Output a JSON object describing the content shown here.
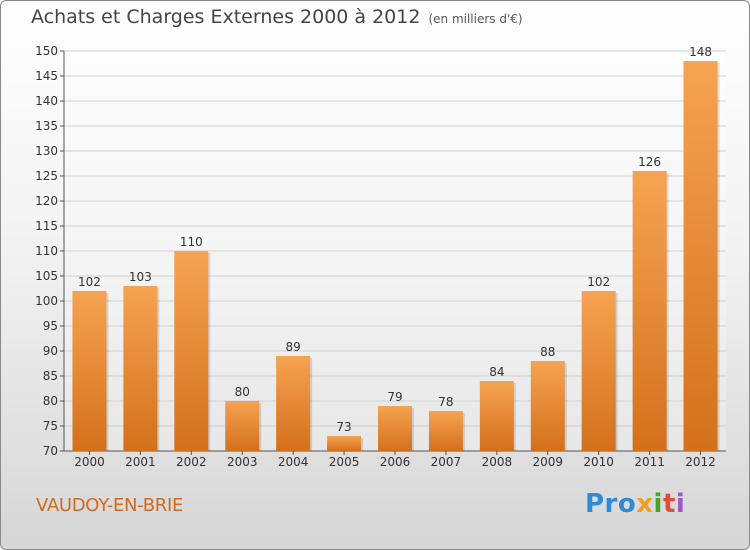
{
  "header": {
    "title": "Achats et Charges Externes 2000 à 2012",
    "unit": "(en milliers d'€)"
  },
  "footer": {
    "town": "VAUDOY-EN-BRIE",
    "logo_parts": [
      "Pro",
      "x",
      "i",
      "t",
      "i"
    ]
  },
  "colors": {
    "bar_light": "#f5a352",
    "bar_dark": "#d4701c",
    "town": "#d2691e",
    "grid": "#d0d0d0"
  },
  "chart_data": {
    "type": "bar",
    "title": "Achats et Charges Externes 2000 à 2012",
    "subtitle": "(en milliers d'€)",
    "categories": [
      "2000",
      "2001",
      "2002",
      "2003",
      "2004",
      "2005",
      "2006",
      "2007",
      "2008",
      "2009",
      "2010",
      "2011",
      "2012"
    ],
    "values": [
      102,
      103,
      110,
      80,
      89,
      73,
      79,
      78,
      84,
      88,
      102,
      126,
      148
    ],
    "ylim": [
      70,
      150
    ],
    "yticks": [
      70,
      75,
      80,
      85,
      90,
      95,
      100,
      105,
      110,
      115,
      120,
      125,
      130,
      135,
      140,
      145,
      150
    ],
    "grid": true,
    "xlabel": "",
    "ylabel": ""
  }
}
